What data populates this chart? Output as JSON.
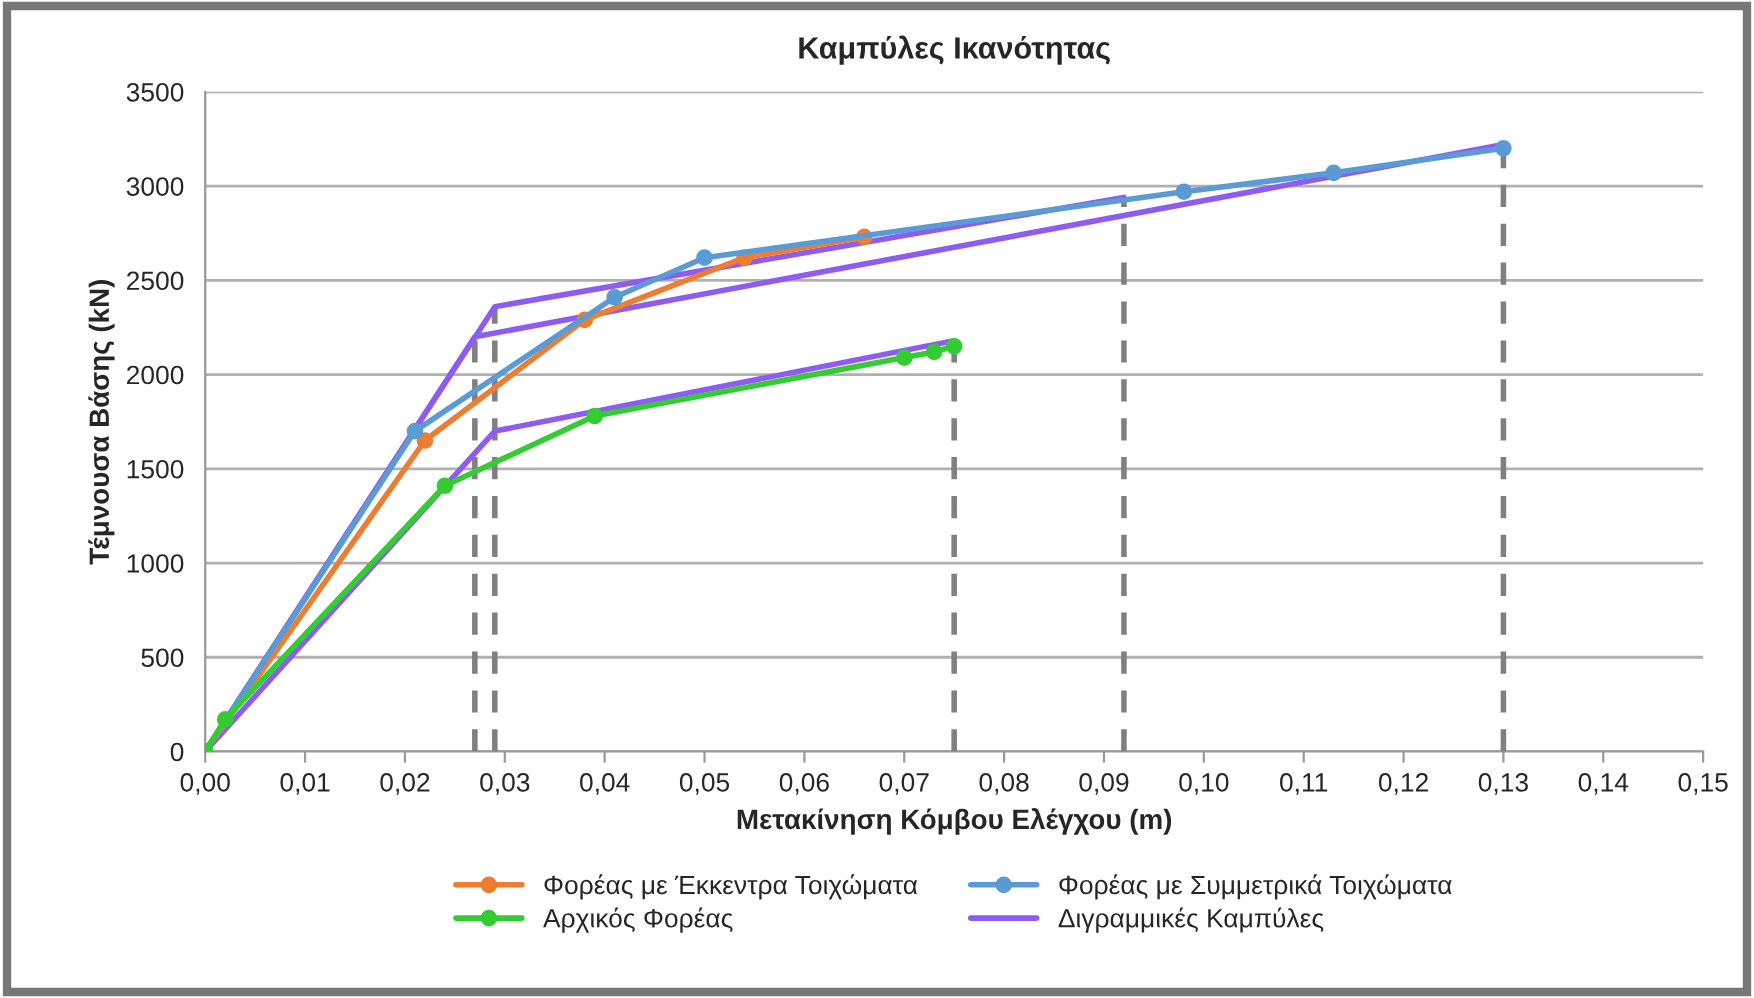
{
  "chart_data": {
    "type": "line",
    "title": "Καμπύλες Ικανότητας",
    "xlabel": "Μετακίνηση Κόμβου Ελέγχου (m)",
    "ylabel": "Τέμνουσα Βάσης (kN)",
    "xlim": [
      0,
      0.15
    ],
    "xticks": [
      {
        "value": 0,
        "label": "0,00"
      },
      {
        "value": 0.01,
        "label": "0,01"
      },
      {
        "value": 0.02,
        "label": "0,02"
      },
      {
        "value": 0.03,
        "label": "0,03"
      },
      {
        "value": 0.04,
        "label": "0,04"
      },
      {
        "value": 0.05,
        "label": "0,05"
      },
      {
        "value": 0.06,
        "label": "0,06"
      },
      {
        "value": 0.07,
        "label": "0,07"
      },
      {
        "value": 0.08,
        "label": "0,08"
      },
      {
        "value": 0.09,
        "label": "0,09"
      },
      {
        "value": 0.1,
        "label": "0,10"
      },
      {
        "value": 0.11,
        "label": "0,11"
      },
      {
        "value": 0.12,
        "label": "0,12"
      },
      {
        "value": 0.13,
        "label": "0,13"
      },
      {
        "value": 0.14,
        "label": "0,14"
      },
      {
        "value": 0.15,
        "label": "0,15"
      }
    ],
    "ylim": [
      0,
      3500
    ],
    "yticks": [
      0,
      500,
      1000,
      1500,
      2000,
      2500,
      3000,
      3500
    ],
    "grid": "y",
    "legend": "bottom",
    "series": [
      {
        "type": "line",
        "color": "#808080",
        "line_style": "dashed",
        "marker": "none",
        "x": [
          0.027,
          0.027
        ],
        "values": [
          0,
          2200
        ]
      },
      {
        "type": "line",
        "color": "#808080",
        "line_style": "dashed",
        "marker": "none",
        "x": [
          0.029,
          0.029
        ],
        "values": [
          0,
          2360
        ]
      },
      {
        "type": "line",
        "color": "#808080",
        "line_style": "dashed",
        "marker": "none",
        "x": [
          0.075,
          0.075
        ],
        "values": [
          0,
          2180
        ]
      },
      {
        "type": "line",
        "color": "#808080",
        "line_style": "dashed",
        "marker": "none",
        "x": [
          0.092,
          0.092
        ],
        "values": [
          0,
          2940
        ]
      },
      {
        "type": "line",
        "color": "#808080",
        "line_style": "dashed",
        "marker": "none",
        "x": [
          0.13,
          0.13
        ],
        "values": [
          0,
          3220
        ]
      },
      {
        "name": "Φορέας με Έκκεντρα Τοιχώματα",
        "color": "#ed7d31",
        "marker": "circle",
        "line_style": "solid",
        "x": [
          0,
          0.022,
          0.038,
          0.054,
          0.066
        ],
        "values": [
          0,
          1650,
          2290,
          2620,
          2730
        ]
      },
      {
        "name": "Φορέας με Συμμετρικά Τοιχώματα",
        "color": "#5b9bd5",
        "marker": "circle",
        "line_style": "solid",
        "x": [
          0,
          0.021,
          0.041,
          0.05,
          0.098,
          0.113,
          0.13
        ],
        "values": [
          0,
          1700,
          2410,
          2620,
          2970,
          3070,
          3200
        ]
      },
      {
        "name": "Αρχικός Φορέας",
        "color": "#33cc33",
        "marker": "circle",
        "line_style": "solid",
        "x": [
          0,
          0.002,
          0.024,
          0.039,
          0.07,
          0.073,
          0.075
        ],
        "values": [
          0,
          170,
          1410,
          1780,
          2090,
          2120,
          2150
        ]
      },
      {
        "name": "Διγραμμικές Καμπύλες",
        "color": "#8e5cf0",
        "marker": "none",
        "line_style": "solid",
        "x": [
          0,
          0.027,
          0.13
        ],
        "values": [
          0,
          2200,
          3220
        ]
      },
      {
        "color": "#8e5cf0",
        "marker": "none",
        "line_style": "solid",
        "x": [
          0,
          0.029,
          0.092
        ],
        "values": [
          0,
          2360,
          2940
        ]
      },
      {
        "color": "#8e5cf0",
        "marker": "none",
        "line_style": "solid",
        "x": [
          0,
          0.029,
          0.075
        ],
        "values": [
          0,
          1700,
          2180
        ]
      }
    ]
  }
}
